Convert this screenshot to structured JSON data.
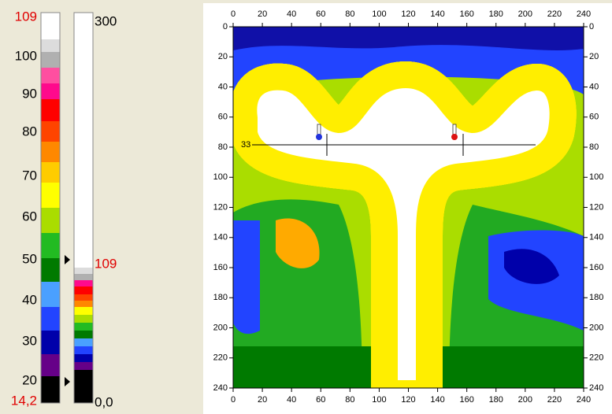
{
  "main_scale": {
    "labels": [
      "109",
      "100",
      "90",
      "80",
      "70",
      "60",
      "50",
      "40",
      "30",
      "20",
      "14,2"
    ]
  },
  "range_scale": {
    "labels": [
      "300",
      "109",
      "0,0"
    ]
  },
  "thermal_image": {
    "x_ticks": [
      0,
      20,
      40,
      60,
      80,
      100,
      120,
      140,
      160,
      180,
      200,
      220,
      240
    ],
    "y_ticks": [
      0,
      20,
      40,
      60,
      80,
      100,
      120,
      140,
      160,
      180,
      200,
      220,
      240
    ],
    "line_label": "33"
  }
}
